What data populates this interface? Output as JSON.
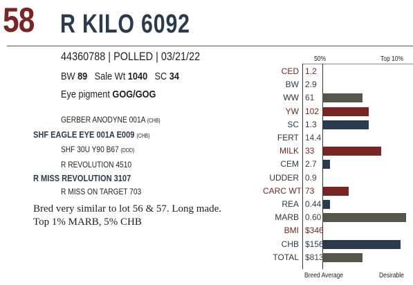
{
  "lot_number": "58",
  "bull_name": "R KILO 6092",
  "registration_line": "44360788 | POLLED | 03/21/22",
  "stats": {
    "bw_label": "BW",
    "bw_value": "89",
    "sale_wt_label": "Sale Wt",
    "sale_wt_value": "1040",
    "sc_label": "SC",
    "sc_value": "34"
  },
  "eye_pigment": {
    "label": "Eye pigment",
    "value": "GOG/GOG"
  },
  "pedigree": {
    "sire_sire": "GERBER ANODYNE 001A",
    "sire_sire_tag": "{CHB}",
    "sire": "SHF EAGLE EYE 001A E009",
    "sire_tag": "{CHB}",
    "sire_dam": "SHF 30U Y90 B67",
    "sire_dam_tag": "{DOD}",
    "dam_sire": "R REVOLUTION 4510",
    "dam": "R MISS REVOLUTION 3107",
    "dam_dam": "R MISS ON TARGET 703"
  },
  "comments": [
    "Bred very similar to lot 56 & 57. Long made.",
    "Top 1% MARB, 5% CHB"
  ],
  "chart_labels": {
    "top_left": "50%",
    "top_right": "Top 10%",
    "bottom_left": "Breed Average",
    "bottom_right": "Desirable"
  },
  "colors": {
    "maroon": "#7a2424",
    "navy": "#2a3b4d",
    "olive": "#55554a",
    "plain": "#333333"
  },
  "chart_data": {
    "type": "bar",
    "orientation": "horizontal",
    "title": "",
    "scale_note": "bar length measured from Breed Average (0) toward Desirable (1.0); 50% and Top 10% are reference marks",
    "reference_marks": {
      "50%": 0.03,
      "Top 10%": 0.78
    },
    "rows": [
      {
        "trait": "CED",
        "value": "1.2",
        "color": "maroon",
        "bar": 0.0
      },
      {
        "trait": "BW",
        "value": "2.9",
        "color": "navy",
        "bar": 0.0
      },
      {
        "trait": "WW",
        "value": "61",
        "color": "plain",
        "bar": 0.48
      },
      {
        "trait": "YW",
        "value": "102",
        "color": "maroon",
        "bar": 0.55
      },
      {
        "trait": "SC",
        "value": "1.3",
        "color": "navy",
        "bar": 0.55
      },
      {
        "trait": "FERT",
        "value": "14.4",
        "color": "plain",
        "bar": 0.0
      },
      {
        "trait": "MILK",
        "value": "33",
        "color": "maroon",
        "bar": 0.7
      },
      {
        "trait": "CEM",
        "value": "2.7",
        "color": "navy",
        "bar": 0.09
      },
      {
        "trait": "UDDER",
        "value": "0.9",
        "color": "plain",
        "bar": 0.0
      },
      {
        "trait": "CARC WT",
        "value": "73",
        "color": "maroon",
        "bar": 0.31
      },
      {
        "trait": "REA",
        "value": "0.44",
        "color": "navy",
        "bar": 0.09
      },
      {
        "trait": "MARB",
        "value": "0.60",
        "color": "plain",
        "bar": 1.0
      },
      {
        "trait": "BMI",
        "value": "$346",
        "color": "maroon",
        "bar": 0.0
      },
      {
        "trait": "CHB",
        "value": "$156",
        "color": "navy",
        "bar": 0.93
      },
      {
        "trait": "TOTAL",
        "value": "$813",
        "color": "plain",
        "bar": 0.48
      }
    ]
  }
}
